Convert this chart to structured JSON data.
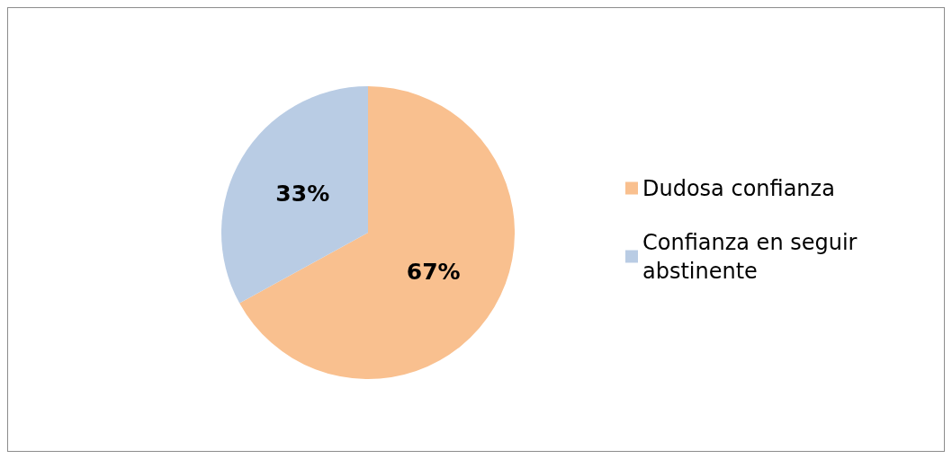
{
  "chart_data": {
    "type": "pie",
    "categories": [
      "Dudosa confianza",
      "Confianza en seguir abstinente"
    ],
    "values": [
      67,
      33
    ],
    "colors": [
      "#f9c08f",
      "#b9cce4"
    ],
    "value_labels": [
      "67%",
      "33%"
    ],
    "legend": "right"
  }
}
